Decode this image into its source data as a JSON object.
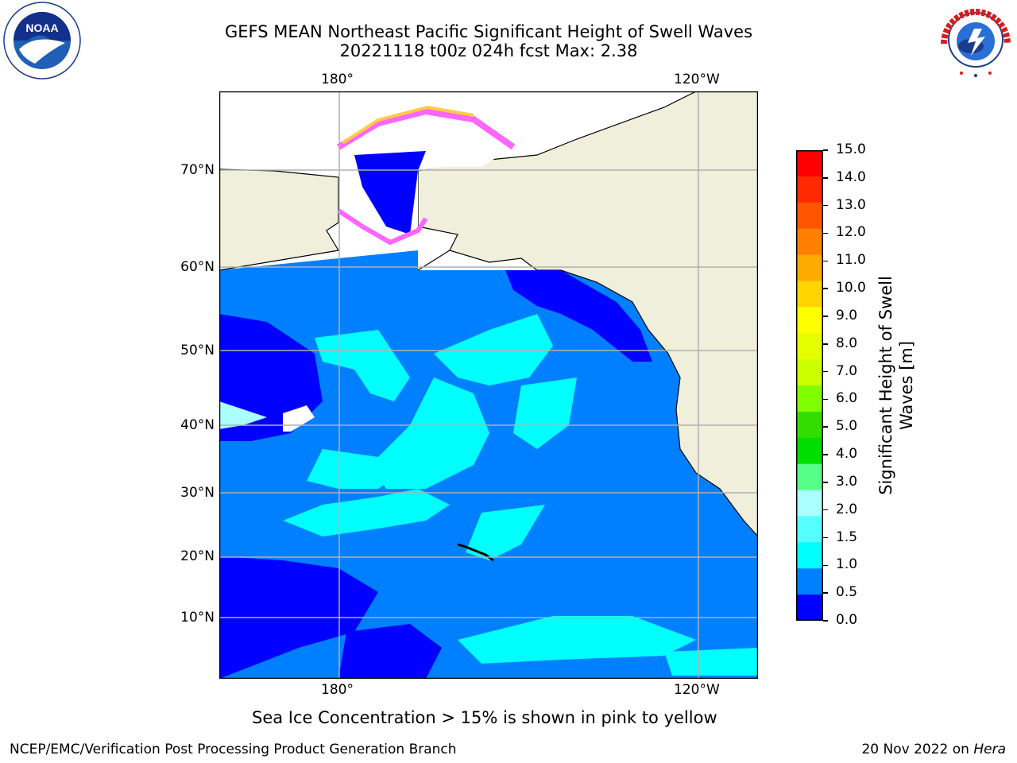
{
  "title": {
    "line1": "GEFS MEAN Northeast Pacific Significant Height of Swell Waves",
    "line2": "20221118 t00z 024h fcst   Max: 2.38"
  },
  "map": {
    "lon_ticks_top": [
      "180°",
      "120°W"
    ],
    "lon_ticks_bottom": [
      "180°",
      "120°W"
    ],
    "lat_ticks": [
      "70°N",
      "60°N",
      "50°N",
      "40°N",
      "30°N",
      "20°N",
      "10°N"
    ]
  },
  "colorbar": {
    "label_line1": "Significant Height of Swell",
    "label_line2": "Waves [m]",
    "ticks": [
      "15.0",
      "14.0",
      "13.0",
      "12.0",
      "11.0",
      "10.0",
      "9.0",
      "8.0",
      "7.0",
      "6.0",
      "5.0",
      "4.0",
      "3.0",
      "2.0",
      "1.5",
      "1.0",
      "0.5",
      "0.0"
    ],
    "colors": [
      "#ff0000",
      "#ff2a00",
      "#ff5500",
      "#ff8000",
      "#ffaa00",
      "#ffd400",
      "#ffff00",
      "#e5ff00",
      "#ccff00",
      "#80ff00",
      "#33dd00",
      "#00dd00",
      "#55ff88",
      "#aaffff",
      "#55ffff",
      "#00ffff",
      "#0080ff",
      "#0000ff"
    ]
  },
  "note": "Sea Ice Concentration > 15% is shown in pink to yellow",
  "footer": {
    "left": "NCEP/EMC/Verification Post Processing Product Generation Branch",
    "right_date": "20 Nov 2022 on ",
    "right_host": "Hera"
  },
  "logos": {
    "noaa": "NOAA",
    "nws": "NATIONAL WEATHER SERVICE"
  }
}
